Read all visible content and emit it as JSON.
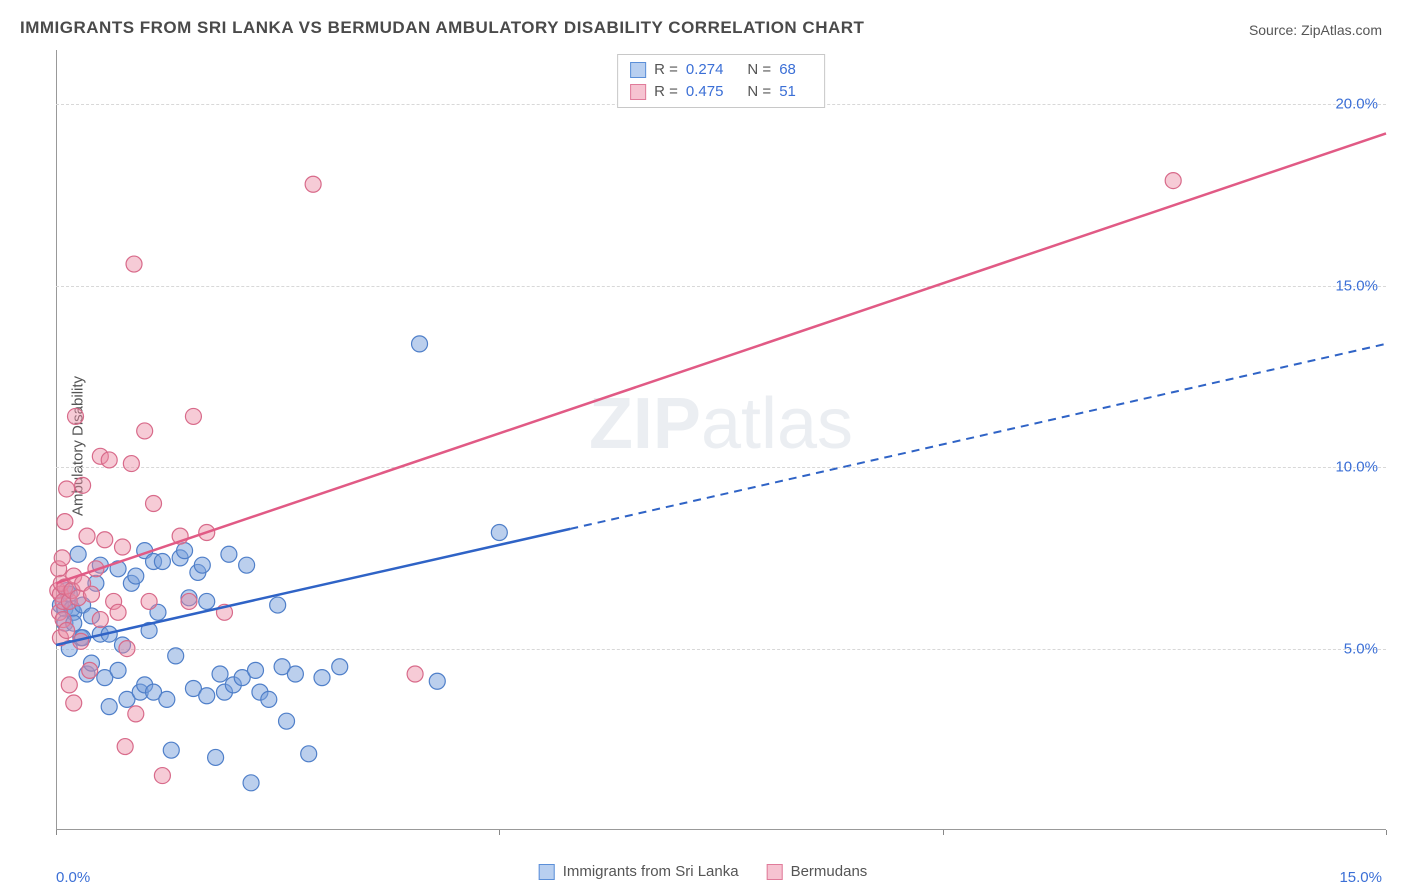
{
  "title": "IMMIGRANTS FROM SRI LANKA VS BERMUDAN AMBULATORY DISABILITY CORRELATION CHART",
  "source_label": "Source: ",
  "source_name": "ZipAtlas.com",
  "y_axis_label": "Ambulatory Disability",
  "watermark_bold": "ZIP",
  "watermark_rest": "atlas",
  "chart": {
    "type": "scatter",
    "xlim": [
      0,
      15
    ],
    "ylim": [
      0,
      21.5
    ],
    "x_ticks": [
      0,
      5,
      10,
      15
    ],
    "x_tick_labels": [
      "0.0%",
      "",
      "",
      "15.0%"
    ],
    "y_gridlines": [
      5,
      10,
      15,
      20
    ],
    "y_tick_labels": [
      "5.0%",
      "10.0%",
      "15.0%",
      "20.0%"
    ],
    "background_color": "#ffffff",
    "grid_color": "#d8d8d8",
    "axis_color": "#999999",
    "tick_label_color": "#3b6fd6",
    "marker_radius": 8,
    "marker_stroke_width": 1.2,
    "marker_opacity": 0.55,
    "series": [
      {
        "key": "sri_lanka",
        "label": "Immigrants from Sri Lanka",
        "color_fill": "rgba(120,160,220,0.5)",
        "color_stroke": "#4f7fc9",
        "swatch_fill": "#b8cff0",
        "swatch_border": "#5b8fd8",
        "stats": {
          "R": "0.274",
          "N": "68"
        },
        "trendline": {
          "stroke": "#2f63c6",
          "width": 2.5,
          "solid_from": [
            0,
            5.1
          ],
          "solid_to": [
            5.8,
            8.3
          ],
          "dashed_to": [
            15,
            13.4
          ]
        },
        "points": [
          [
            0.05,
            6.2
          ],
          [
            0.1,
            6.1
          ],
          [
            0.1,
            5.7
          ],
          [
            0.12,
            6.6
          ],
          [
            0.15,
            5.0
          ],
          [
            0.15,
            6.5
          ],
          [
            0.18,
            6.1
          ],
          [
            0.2,
            6.0
          ],
          [
            0.2,
            5.7
          ],
          [
            0.25,
            7.6
          ],
          [
            0.28,
            5.3
          ],
          [
            0.3,
            6.2
          ],
          [
            0.3,
            5.3
          ],
          [
            0.35,
            4.3
          ],
          [
            0.4,
            4.6
          ],
          [
            0.4,
            5.9
          ],
          [
            0.45,
            6.8
          ],
          [
            0.5,
            7.3
          ],
          [
            0.5,
            5.4
          ],
          [
            0.55,
            4.2
          ],
          [
            0.6,
            3.4
          ],
          [
            0.6,
            5.4
          ],
          [
            0.7,
            7.2
          ],
          [
            0.7,
            4.4
          ],
          [
            0.75,
            5.1
          ],
          [
            0.8,
            3.6
          ],
          [
            0.85,
            6.8
          ],
          [
            0.9,
            7.0
          ],
          [
            0.95,
            3.8
          ],
          [
            1.0,
            4.0
          ],
          [
            1.0,
            7.7
          ],
          [
            1.05,
            5.5
          ],
          [
            1.1,
            7.4
          ],
          [
            1.1,
            3.8
          ],
          [
            1.15,
            6.0
          ],
          [
            1.2,
            7.4
          ],
          [
            1.25,
            3.6
          ],
          [
            1.3,
            2.2
          ],
          [
            1.35,
            4.8
          ],
          [
            1.4,
            7.5
          ],
          [
            1.45,
            7.7
          ],
          [
            1.5,
            6.4
          ],
          [
            1.55,
            3.9
          ],
          [
            1.6,
            7.1
          ],
          [
            1.65,
            7.3
          ],
          [
            1.7,
            6.3
          ],
          [
            1.7,
            3.7
          ],
          [
            1.8,
            2.0
          ],
          [
            1.85,
            4.3
          ],
          [
            1.9,
            3.8
          ],
          [
            1.95,
            7.6
          ],
          [
            2.0,
            4.0
          ],
          [
            2.1,
            4.2
          ],
          [
            2.15,
            7.3
          ],
          [
            2.2,
            1.3
          ],
          [
            2.25,
            4.4
          ],
          [
            2.3,
            3.8
          ],
          [
            2.4,
            3.6
          ],
          [
            2.5,
            6.2
          ],
          [
            2.55,
            4.5
          ],
          [
            2.6,
            3.0
          ],
          [
            2.7,
            4.3
          ],
          [
            2.85,
            2.1
          ],
          [
            3.0,
            4.2
          ],
          [
            3.2,
            4.5
          ],
          [
            4.1,
            13.4
          ],
          [
            4.3,
            4.1
          ],
          [
            5.0,
            8.2
          ]
        ]
      },
      {
        "key": "bermudans",
        "label": "Bermudans",
        "color_fill": "rgba(235,140,165,0.45)",
        "color_stroke": "#d86a8a",
        "swatch_fill": "#f6c3d1",
        "swatch_border": "#e07b9a",
        "stats": {
          "R": "0.475",
          "N": "51"
        },
        "trendline": {
          "stroke": "#e15a85",
          "width": 2.5,
          "solid_from": [
            0,
            6.8
          ],
          "solid_to": [
            15,
            19.2
          ],
          "dashed_to": null
        },
        "points": [
          [
            0.02,
            6.6
          ],
          [
            0.03,
            7.2
          ],
          [
            0.04,
            6.0
          ],
          [
            0.05,
            6.5
          ],
          [
            0.05,
            5.3
          ],
          [
            0.06,
            6.8
          ],
          [
            0.07,
            7.5
          ],
          [
            0.08,
            5.8
          ],
          [
            0.08,
            6.3
          ],
          [
            0.1,
            8.5
          ],
          [
            0.1,
            6.7
          ],
          [
            0.12,
            9.4
          ],
          [
            0.12,
            5.5
          ],
          [
            0.15,
            6.3
          ],
          [
            0.15,
            4.0
          ],
          [
            0.18,
            6.6
          ],
          [
            0.2,
            7.0
          ],
          [
            0.2,
            3.5
          ],
          [
            0.22,
            11.4
          ],
          [
            0.25,
            6.4
          ],
          [
            0.28,
            5.2
          ],
          [
            0.3,
            6.8
          ],
          [
            0.3,
            9.5
          ],
          [
            0.35,
            8.1
          ],
          [
            0.38,
            4.4
          ],
          [
            0.4,
            6.5
          ],
          [
            0.45,
            7.2
          ],
          [
            0.5,
            10.3
          ],
          [
            0.5,
            5.8
          ],
          [
            0.55,
            8.0
          ],
          [
            0.6,
            10.2
          ],
          [
            0.65,
            6.3
          ],
          [
            0.7,
            6.0
          ],
          [
            0.75,
            7.8
          ],
          [
            0.78,
            2.3
          ],
          [
            0.8,
            5.0
          ],
          [
            0.85,
            10.1
          ],
          [
            0.88,
            15.6
          ],
          [
            0.9,
            3.2
          ],
          [
            1.0,
            11.0
          ],
          [
            1.05,
            6.3
          ],
          [
            1.1,
            9.0
          ],
          [
            1.2,
            1.5
          ],
          [
            1.4,
            8.1
          ],
          [
            1.5,
            6.3
          ],
          [
            1.55,
            11.4
          ],
          [
            1.7,
            8.2
          ],
          [
            1.9,
            6.0
          ],
          [
            2.9,
            17.8
          ],
          [
            4.05,
            4.3
          ],
          [
            12.6,
            17.9
          ]
        ]
      }
    ]
  },
  "stats_box": {
    "r_label": "R =",
    "n_label": "N ="
  }
}
